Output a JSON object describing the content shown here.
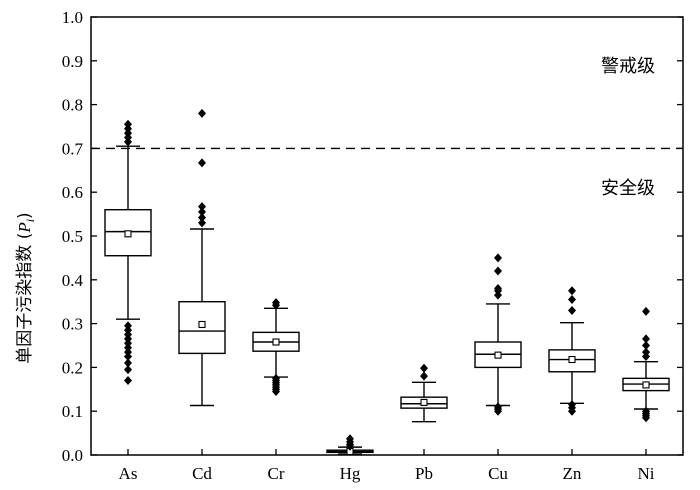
{
  "chart_data": {
    "type": "box",
    "ylabel_prefix": "单因子污染指数 (",
    "ylabel_var": "P",
    "ylabel_sub": "i",
    "ylabel_suffix": ")",
    "ylim": [
      0.0,
      1.0
    ],
    "yticks": [
      "0.0",
      "0.1",
      "0.2",
      "0.3",
      "0.4",
      "0.5",
      "0.6",
      "0.7",
      "0.8",
      "0.9",
      "1.0"
    ],
    "threshold": 0.7,
    "zone_labels": {
      "above": "警戒级",
      "below": "安全级"
    },
    "categories": [
      "As",
      "Cd",
      "Cr",
      "Hg",
      "Pb",
      "Cu",
      "Zn",
      "Ni"
    ],
    "boxes": [
      {
        "name": "As",
        "whisker_low": 0.31,
        "q1": 0.455,
        "median": 0.51,
        "q3": 0.56,
        "whisker_high": 0.705,
        "mean": 0.505,
        "outliers": [
          0.755,
          0.745,
          0.735,
          0.725,
          0.715,
          0.295,
          0.285,
          0.275,
          0.265,
          0.255,
          0.245,
          0.235,
          0.225,
          0.21,
          0.195,
          0.17
        ]
      },
      {
        "name": "Cd",
        "whisker_low": 0.113,
        "q1": 0.232,
        "median": 0.283,
        "q3": 0.35,
        "whisker_high": 0.516,
        "mean": 0.298,
        "outliers": [
          0.78,
          0.667,
          0.567,
          0.555,
          0.542,
          0.53
        ]
      },
      {
        "name": "Cr",
        "whisker_low": 0.178,
        "q1": 0.237,
        "median": 0.258,
        "q3": 0.28,
        "whisker_high": 0.335,
        "mean": 0.258,
        "outliers": [
          0.348,
          0.342,
          0.175,
          0.17,
          0.165,
          0.16,
          0.155,
          0.15,
          0.145
        ]
      },
      {
        "name": "Hg",
        "whisker_low": 0.002,
        "q1": 0.006,
        "median": 0.008,
        "q3": 0.011,
        "whisker_high": 0.018,
        "mean": 0.008,
        "outliers": [
          0.037,
          0.03,
          0.024,
          0.02
        ]
      },
      {
        "name": "Pb",
        "whisker_low": 0.076,
        "q1": 0.107,
        "median": 0.117,
        "q3": 0.132,
        "whisker_high": 0.166,
        "mean": 0.12,
        "outliers": [
          0.198,
          0.18
        ]
      },
      {
        "name": "Cu",
        "whisker_low": 0.113,
        "q1": 0.2,
        "median": 0.23,
        "q3": 0.258,
        "whisker_high": 0.345,
        "mean": 0.228,
        "outliers": [
          0.45,
          0.42,
          0.38,
          0.375,
          0.365,
          0.11,
          0.105,
          0.1
        ]
      },
      {
        "name": "Zn",
        "whisker_low": 0.118,
        "q1": 0.19,
        "median": 0.218,
        "q3": 0.24,
        "whisker_high": 0.302,
        "mean": 0.218,
        "outliers": [
          0.375,
          0.355,
          0.33,
          0.115,
          0.108,
          0.1
        ]
      },
      {
        "name": "Ni",
        "whisker_low": 0.105,
        "q1": 0.147,
        "median": 0.162,
        "q3": 0.175,
        "whisker_high": 0.213,
        "mean": 0.16,
        "outliers": [
          0.328,
          0.265,
          0.25,
          0.235,
          0.225,
          0.1,
          0.095,
          0.09,
          0.085
        ]
      }
    ]
  }
}
